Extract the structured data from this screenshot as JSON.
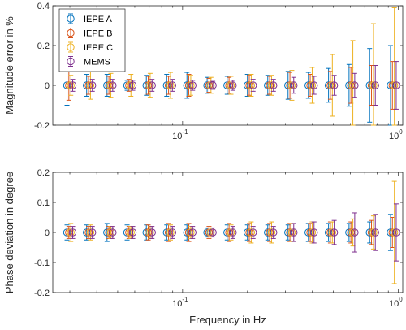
{
  "colors": {
    "IEPE A": "#0072BD",
    "IEPE B": "#D95319",
    "IEPE C": "#EDB120",
    "MEMS": "#7E2F8E",
    "axis": "#262626"
  },
  "chart_data": [
    {
      "type": "scatter",
      "panel": "top",
      "xlabel": "",
      "ylabel": "Magnitude error in %",
      "xscale": "log",
      "xlim": [
        0.025,
        1.05
      ],
      "ylim": [
        -0.2,
        0.4
      ],
      "yticks": [
        "-0.2",
        "0",
        "0.2",
        "0.4"
      ],
      "xticks": [
        {
          "value": 0.1,
          "base": "10",
          "exp": "-1"
        },
        {
          "value": 1,
          "base": "10",
          "exp": "0"
        }
      ],
      "legend": {
        "position": "top-left",
        "entries": [
          "IEPE A",
          "IEPE B",
          "IEPE C",
          "MEMS"
        ]
      },
      "grid": false,
      "x": [
        0.03,
        0.037,
        0.046,
        0.057,
        0.07,
        0.087,
        0.108,
        0.134,
        0.166,
        0.206,
        0.256,
        0.318,
        0.395,
        0.49,
        0.61,
        0.76,
        0.95
      ],
      "series": [
        {
          "name": "IEPE A",
          "mean": [
            0.0,
            0.0,
            0.0,
            0.0,
            0.0,
            0.0,
            0.0,
            0.0,
            0.0,
            0.0,
            0.0,
            0.0,
            0.0,
            0.0,
            0.0,
            0.0,
            0.0
          ],
          "err": [
            0.1,
            0.055,
            0.055,
            0.025,
            0.05,
            0.055,
            0.065,
            0.04,
            0.045,
            0.055,
            0.05,
            0.07,
            0.065,
            0.085,
            0.105,
            0.185,
            0.2
          ]
        },
        {
          "name": "IEPE B",
          "mean": [
            0.0,
            0.0,
            0.0,
            0.0,
            0.0,
            0.0,
            0.0,
            0.0,
            0.0,
            0.0,
            0.0,
            0.0,
            0.0,
            0.0,
            0.0,
            0.0,
            0.0
          ],
          "err": [
            0.075,
            0.045,
            0.045,
            0.03,
            0.045,
            0.045,
            0.055,
            0.035,
            0.04,
            0.05,
            0.045,
            0.065,
            0.055,
            0.07,
            0.09,
            0.1,
            0.12
          ]
        },
        {
          "name": "IEPE C",
          "mean": [
            0.0,
            0.0,
            0.0,
            0.0,
            0.0,
            0.0,
            0.0,
            0.0,
            0.0,
            0.0,
            0.0,
            0.0,
            0.0,
            0.0,
            0.0,
            0.0,
            0.0
          ],
          "err": [
            0.05,
            0.07,
            0.06,
            0.055,
            0.06,
            0.065,
            0.05,
            0.04,
            0.045,
            0.055,
            0.05,
            0.075,
            0.09,
            0.155,
            0.225,
            0.31,
            0.39
          ]
        },
        {
          "name": "MEMS",
          "mean": [
            0.0,
            0.0,
            0.0,
            0.0,
            0.0,
            0.0,
            0.0,
            0.0,
            0.0,
            0.0,
            0.0,
            0.0,
            0.0,
            0.0,
            0.0,
            0.0,
            0.0
          ],
          "err": [
            0.03,
            0.03,
            0.03,
            0.025,
            0.03,
            0.03,
            0.025,
            0.02,
            0.025,
            0.03,
            0.03,
            0.04,
            0.045,
            0.05,
            0.06,
            0.1,
            0.12
          ]
        }
      ]
    },
    {
      "type": "scatter",
      "panel": "bottom",
      "xlabel": "Frequency in Hz",
      "ylabel": "Phase deviation in degree",
      "xscale": "log",
      "xlim": [
        0.025,
        1.05
      ],
      "ylim": [
        -0.2,
        0.2
      ],
      "yticks": [
        "-0.2",
        "-0.1",
        "0",
        "0.1",
        "0.2"
      ],
      "xticks": [
        {
          "value": 0.1,
          "base": "10",
          "exp": "-1"
        },
        {
          "value": 1,
          "base": "10",
          "exp": "0"
        }
      ],
      "grid": false,
      "x": [
        0.03,
        0.037,
        0.046,
        0.057,
        0.07,
        0.087,
        0.108,
        0.134,
        0.166,
        0.206,
        0.256,
        0.318,
        0.395,
        0.49,
        0.61,
        0.76,
        0.95
      ],
      "series": [
        {
          "name": "IEPE A",
          "mean": [
            0.0,
            0.0,
            0.0,
            0.0,
            0.0,
            0.0,
            0.0,
            0.0,
            0.0,
            0.0,
            0.0,
            0.0,
            0.0,
            0.0,
            0.0,
            0.0,
            0.0
          ],
          "err": [
            0.025,
            0.025,
            0.03,
            0.025,
            0.025,
            0.025,
            0.025,
            0.015,
            0.025,
            0.025,
            0.025,
            0.025,
            0.03,
            0.03,
            0.03,
            0.035,
            0.06
          ]
        },
        {
          "name": "IEPE B",
          "mean": [
            0.0,
            0.0,
            0.0,
            0.0,
            0.0,
            0.0,
            0.0,
            0.0,
            0.0,
            0.0,
            0.0,
            0.0,
            0.0,
            0.0,
            0.0,
            0.0,
            0.0
          ],
          "err": [
            0.02,
            0.02,
            0.02,
            0.02,
            0.025,
            0.03,
            0.03,
            0.02,
            0.03,
            0.03,
            0.03,
            0.03,
            0.03,
            0.035,
            0.035,
            0.04,
            0.05
          ]
        },
        {
          "name": "IEPE C",
          "mean": [
            0.0,
            0.0,
            0.0,
            0.0,
            0.0,
            0.0,
            0.0,
            0.0,
            0.0,
            0.0,
            0.0,
            0.0,
            0.0,
            0.0,
            0.0,
            0.0,
            0.0
          ],
          "err": [
            0.03,
            0.025,
            0.02,
            0.02,
            0.02,
            0.025,
            0.02,
            0.015,
            0.025,
            0.035,
            0.035,
            0.03,
            0.035,
            0.035,
            0.045,
            0.055,
            0.17
          ]
        },
        {
          "name": "MEMS",
          "mean": [
            0.0,
            0.0,
            0.0,
            0.0,
            0.0,
            0.0,
            0.0,
            0.0,
            0.0,
            0.0,
            0.0,
            0.0,
            0.0,
            0.0,
            0.0,
            0.0,
            0.0
          ],
          "err": [
            0.02,
            0.02,
            0.02,
            0.02,
            0.02,
            0.02,
            0.02,
            0.015,
            0.02,
            0.02,
            0.02,
            0.03,
            0.035,
            0.04,
            0.065,
            0.06,
            0.095
          ]
        }
      ]
    }
  ]
}
